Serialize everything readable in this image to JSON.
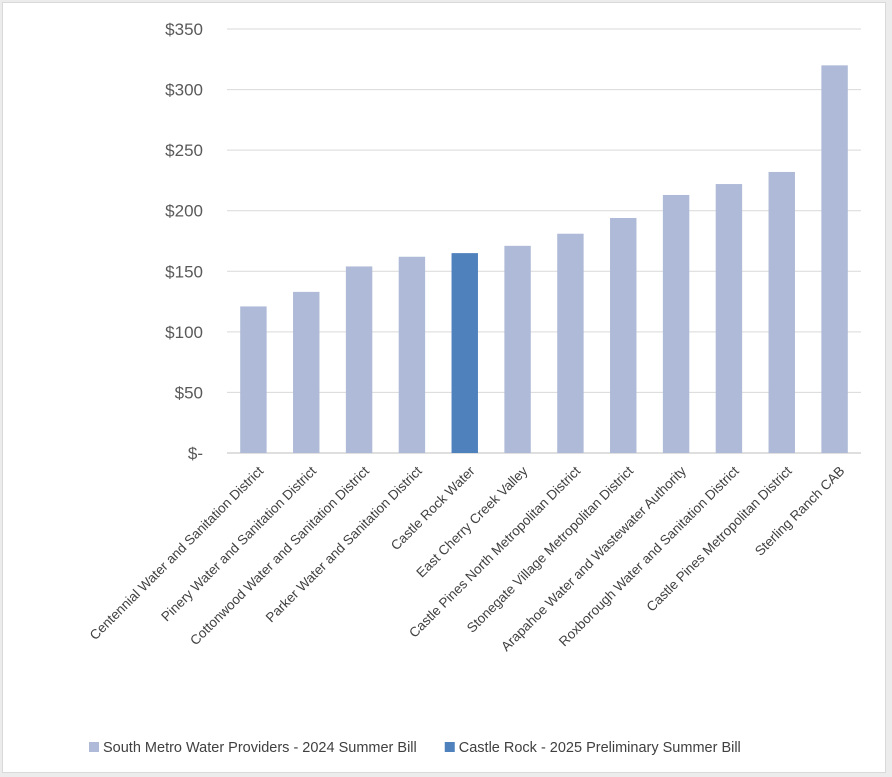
{
  "chart_data": {
    "type": "bar",
    "title": "",
    "xlabel": "",
    "ylabel": "",
    "ylim": [
      0,
      350
    ],
    "yticks": [
      {
        "value": 0,
        "label": "$-"
      },
      {
        "value": 50,
        "label": "$50"
      },
      {
        "value": 100,
        "label": "$100"
      },
      {
        "value": 150,
        "label": "$150"
      },
      {
        "value": 200,
        "label": "$200"
      },
      {
        "value": 250,
        "label": "$250"
      },
      {
        "value": 300,
        "label": "$300"
      },
      {
        "value": 350,
        "label": "$350"
      }
    ],
    "grid": true,
    "legend_position": "bottom",
    "categories": [
      "Centennial Water and Sanitation District",
      "Pinery Water and Sanitation District",
      "Cottonwood Water and Sanitation District",
      "Parker Water and Sanitation District",
      "Castle Rock Water",
      "East Cherry Creek Valley",
      "Castle Pines North Metropolitan District",
      "Stonegate Village Metropolitan District",
      "Arapahoe Water and Wastewater Authority",
      "Roxborough Water and Sanitation District",
      "Castle Pines Metropolitan District",
      "Sterling Ranch CAB"
    ],
    "values": [
      121,
      133,
      154,
      162,
      165,
      171,
      181,
      194,
      213,
      222,
      232,
      320
    ],
    "series_index": [
      0,
      0,
      0,
      0,
      1,
      0,
      0,
      0,
      0,
      0,
      0,
      0
    ],
    "series": [
      {
        "name": "South Metro Water Providers - 2024 Summer Bill",
        "color": "#aebad7"
      },
      {
        "name": "Castle Rock - 2025 Preliminary Summer Bill",
        "color": "#4f81bd"
      }
    ]
  },
  "colors": {
    "grid": "#d9d9d9",
    "axis": "#bfbfbf"
  }
}
